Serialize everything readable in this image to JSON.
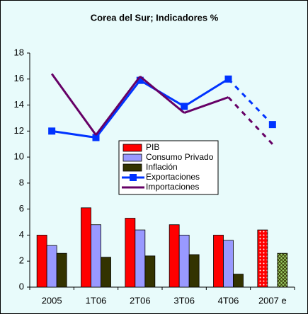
{
  "chart_data": {
    "type": "bar_line",
    "title": "Corea del Sur; Indicadores %",
    "categories": [
      "2005",
      "1T06",
      "2T06",
      "3T06",
      "4T06",
      "2007 e"
    ],
    "series": [
      {
        "name": "PIB",
        "type": "bar",
        "color": "#ff0000",
        "values": [
          4.0,
          6.1,
          5.3,
          4.8,
          4.0,
          4.4
        ]
      },
      {
        "name": "Consumo Privado",
        "type": "bar",
        "color": "#9999ff",
        "values": [
          3.2,
          4.8,
          4.4,
          4.0,
          3.6,
          null
        ]
      },
      {
        "name": "Inflación",
        "type": "bar",
        "color": "#333300",
        "values": [
          2.6,
          2.3,
          2.4,
          2.5,
          1.0,
          2.6
        ]
      },
      {
        "name": "Exportaciones",
        "type": "line",
        "color": "#0033ff",
        "marker": "square",
        "values": [
          12.0,
          11.5,
          15.9,
          13.9,
          16.0,
          12.5
        ]
      },
      {
        "name": "Importaciones",
        "type": "line",
        "color": "#660066",
        "values": [
          16.4,
          11.7,
          16.2,
          13.4,
          14.6,
          11.0
        ]
      }
    ],
    "ylim": [
      0,
      18
    ],
    "yticks": [
      0,
      2,
      4,
      6,
      8,
      10,
      12,
      14,
      16,
      18
    ],
    "grid": false,
    "legend": "center"
  }
}
